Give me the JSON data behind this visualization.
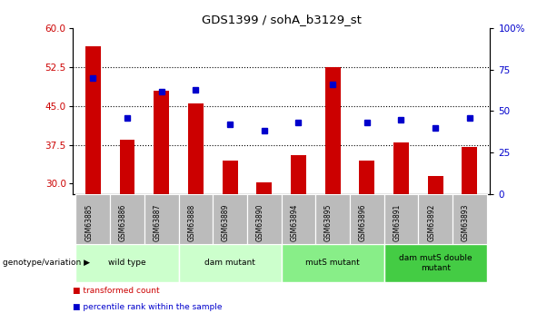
{
  "title": "GDS1399 / sohA_b3129_st",
  "samples": [
    "GSM63885",
    "GSM63886",
    "GSM63887",
    "GSM63888",
    "GSM63889",
    "GSM63890",
    "GSM63894",
    "GSM63895",
    "GSM63896",
    "GSM63891",
    "GSM63892",
    "GSM63893"
  ],
  "transformed_count": [
    56.5,
    38.5,
    48.0,
    45.5,
    34.5,
    30.2,
    35.5,
    52.5,
    34.5,
    38.0,
    31.5,
    37.0
  ],
  "percentile_rank": [
    70,
    46,
    62,
    63,
    42,
    38,
    43,
    66,
    43,
    45,
    40,
    46
  ],
  "ylim_left": [
    28,
    60
  ],
  "ylim_right": [
    0,
    100
  ],
  "yticks_left": [
    30,
    37.5,
    45,
    52.5,
    60
  ],
  "yticks_right": [
    0,
    25,
    50,
    75,
    100
  ],
  "bar_color": "#cc0000",
  "dot_color": "#0000cc",
  "groups": [
    {
      "label": "wild type",
      "start": 0,
      "end": 3,
      "color": "#ccffcc"
    },
    {
      "label": "dam mutant",
      "start": 3,
      "end": 6,
      "color": "#ccffcc"
    },
    {
      "label": "mutS mutant",
      "start": 6,
      "end": 9,
      "color": "#88ee88"
    },
    {
      "label": "dam mutS double\nmutant",
      "start": 9,
      "end": 12,
      "color": "#44cc44"
    }
  ],
  "genotype_label": "genotype/variation",
  "legend_items": [
    {
      "label": "transformed count",
      "color": "#cc0000"
    },
    {
      "label": "percentile rank within the sample",
      "color": "#0000cc"
    }
  ],
  "sample_bg_color": "#bbbbbb",
  "bar_width": 0.45
}
